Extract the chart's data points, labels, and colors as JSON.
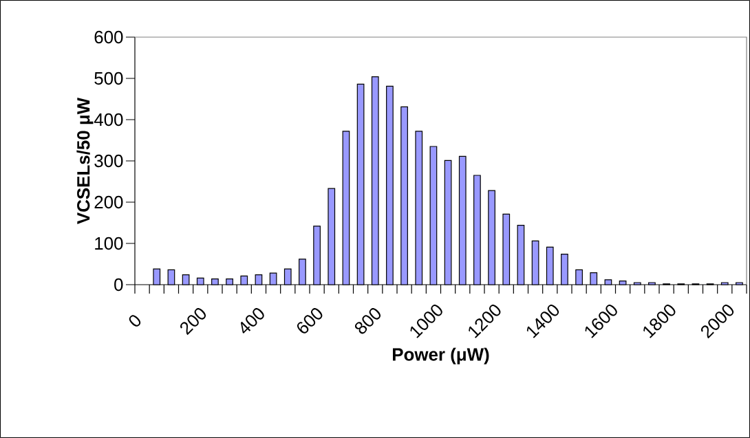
{
  "chart_data": {
    "type": "histogram",
    "xlabel": "Power (μW)",
    "ylabel": "VCSELs/50 μW",
    "color": "#9999ff",
    "bins": [
      50,
      100,
      150,
      200,
      250,
      300,
      350,
      400,
      450,
      500,
      550,
      600,
      650,
      700,
      750,
      800,
      850,
      900,
      950,
      1000,
      1050,
      1100,
      1150,
      1200,
      1250,
      1300,
      1350,
      1400,
      1450,
      1500,
      1550,
      1600,
      1650,
      1700,
      1750,
      1800,
      1850,
      1900,
      1950,
      2000,
      2050,
      2100
    ],
    "values": [
      38,
      36,
      24,
      16,
      14,
      14,
      21,
      24,
      28,
      38,
      62,
      142,
      233,
      372,
      486,
      504,
      481,
      431,
      372,
      335,
      301,
      311,
      265,
      228,
      171,
      144,
      106,
      91,
      74,
      36,
      29,
      12,
      9,
      5,
      5,
      2,
      2,
      2,
      2,
      5,
      5
    ],
    "xlim": [
      0,
      2100
    ],
    "ylim": [
      0,
      600
    ],
    "xticks": [
      0,
      {
        "value": 50,
        "label": null
      },
      {
        "value": 100,
        "label": null
      },
      {
        "value": 150,
        "label": null
      },
      200,
      {
        "value": 250,
        "label": null
      },
      {
        "value": 300,
        "label": null
      },
      {
        "value": 350,
        "label": null
      },
      400,
      {
        "value": 450,
        "label": null
      },
      {
        "value": 500,
        "label": null
      },
      {
        "value": 550,
        "label": null
      },
      600,
      {
        "value": 650,
        "label": null
      },
      {
        "value": 700,
        "label": null
      },
      {
        "value": 750,
        "label": null
      },
      800,
      {
        "value": 850,
        "label": null
      },
      {
        "value": 900,
        "label": null
      },
      {
        "value": 950,
        "label": null
      },
      1000,
      {
        "value": 1050,
        "label": null
      },
      {
        "value": 1100,
        "label": null
      },
      {
        "value": 1150,
        "label": null
      },
      1200,
      {
        "value": 1250,
        "label": null
      },
      {
        "value": 1300,
        "label": null
      },
      {
        "value": 1350,
        "label": null
      },
      1400,
      {
        "value": 1450,
        "label": null
      },
      {
        "value": 1500,
        "label": null
      },
      {
        "value": 1550,
        "label": null
      },
      1600,
      {
        "value": 1650,
        "label": null
      },
      {
        "value": 1700,
        "label": null
      },
      {
        "value": 1750,
        "label": null
      },
      1800,
      {
        "value": 1850,
        "label": null
      },
      {
        "value": 1900,
        "label": null
      },
      {
        "value": 1950,
        "label": null
      },
      2000,
      {
        "value": 2050,
        "label": null
      },
      {
        "value": 2100,
        "label": null
      }
    ],
    "yticks": [
      0,
      100,
      200,
      300,
      400,
      500,
      600
    ]
  }
}
